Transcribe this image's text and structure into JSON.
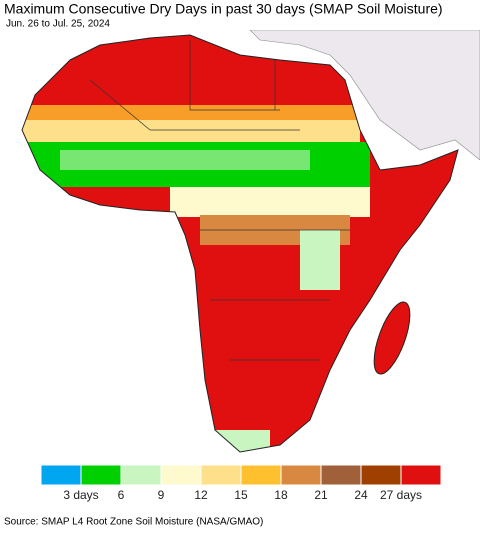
{
  "header": {
    "title": "Maximum Consecutive Dry Days in past 30 days (SMAP Soil Moisture)",
    "subtitle": "Jun. 26 to Jul. 25, 2024"
  },
  "legend": {
    "colors": [
      "#00a6f0",
      "#00d000",
      "#c8f5c0",
      "#fffacd",
      "#ffe08a",
      "#ffc030",
      "#d88840",
      "#a0603a",
      "#a04000",
      "#e01010"
    ],
    "ticks": [
      {
        "value": 3,
        "label": "3 days"
      },
      6,
      9,
      12,
      15,
      18,
      21,
      24,
      {
        "value": 27,
        "label": "27 days"
      }
    ]
  },
  "footer": {
    "source": "Source: SMAP L4 Root Zone Soil Moisture (NASA/GMAO)"
  }
}
